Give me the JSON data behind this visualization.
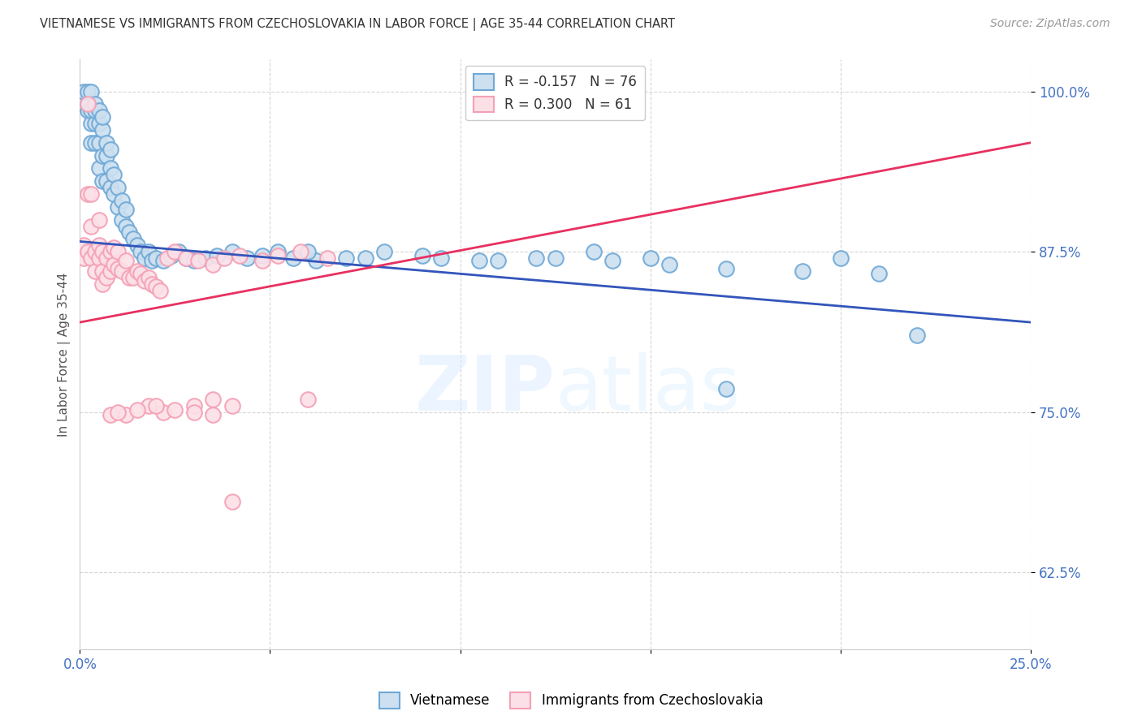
{
  "title": "VIETNAMESE VS IMMIGRANTS FROM CZECHOSLOVAKIA IN LABOR FORCE | AGE 35-44 CORRELATION CHART",
  "source": "Source: ZipAtlas.com",
  "ylabel": "In Labor Force | Age 35-44",
  "xlim": [
    0.0,
    0.25
  ],
  "ylim": [
    0.565,
    1.025
  ],
  "xtick_positions": [
    0.0,
    0.05,
    0.1,
    0.15,
    0.2,
    0.25
  ],
  "xticklabels": [
    "0.0%",
    "",
    "",
    "",
    "",
    "25.0%"
  ],
  "ytick_positions": [
    0.625,
    0.75,
    0.875,
    1.0
  ],
  "ytick_labels": [
    "62.5%",
    "75.0%",
    "87.5%",
    "100.0%"
  ],
  "blue_color_face": "#cce0f0",
  "blue_color_edge": "#6fa8d6",
  "pink_color_face": "#fce0e8",
  "pink_color_edge": "#f4a0b5",
  "blue_line_color": "#3355bb",
  "pink_line_color": "#e83060",
  "watermark_color": "#ddeeff",
  "blue_scatter_x": [
    0.001,
    0.001,
    0.002,
    0.002,
    0.002,
    0.003,
    0.003,
    0.003,
    0.003,
    0.004,
    0.004,
    0.004,
    0.004,
    0.005,
    0.005,
    0.005,
    0.005,
    0.006,
    0.006,
    0.006,
    0.006,
    0.007,
    0.007,
    0.007,
    0.008,
    0.008,
    0.008,
    0.009,
    0.009,
    0.01,
    0.01,
    0.011,
    0.011,
    0.012,
    0.012,
    0.013,
    0.014,
    0.015,
    0.016,
    0.017,
    0.018,
    0.019,
    0.02,
    0.022,
    0.024,
    0.026,
    0.028,
    0.03,
    0.033,
    0.036,
    0.04,
    0.044,
    0.048,
    0.052,
    0.056,
    0.062,
    0.07,
    0.08,
    0.095,
    0.11,
    0.125,
    0.14,
    0.155,
    0.17,
    0.19,
    0.21,
    0.06,
    0.075,
    0.09,
    0.105,
    0.12,
    0.135,
    0.15,
    0.17,
    0.2,
    0.22
  ],
  "blue_scatter_y": [
    0.99,
    1.0,
    0.985,
    0.99,
    1.0,
    0.96,
    0.975,
    0.985,
    1.0,
    0.96,
    0.975,
    0.985,
    0.99,
    0.94,
    0.96,
    0.975,
    0.985,
    0.93,
    0.95,
    0.97,
    0.98,
    0.93,
    0.95,
    0.96,
    0.925,
    0.94,
    0.955,
    0.92,
    0.935,
    0.91,
    0.925,
    0.9,
    0.915,
    0.895,
    0.908,
    0.89,
    0.885,
    0.88,
    0.875,
    0.87,
    0.875,
    0.868,
    0.87,
    0.868,
    0.872,
    0.875,
    0.87,
    0.868,
    0.87,
    0.872,
    0.875,
    0.87,
    0.872,
    0.875,
    0.87,
    0.868,
    0.87,
    0.875,
    0.87,
    0.868,
    0.87,
    0.868,
    0.865,
    0.862,
    0.86,
    0.858,
    0.875,
    0.87,
    0.872,
    0.868,
    0.87,
    0.875,
    0.87,
    0.768,
    0.87,
    0.81
  ],
  "pink_scatter_x": [
    0.001,
    0.001,
    0.002,
    0.002,
    0.002,
    0.003,
    0.003,
    0.003,
    0.004,
    0.004,
    0.005,
    0.005,
    0.005,
    0.006,
    0.006,
    0.006,
    0.007,
    0.007,
    0.008,
    0.008,
    0.009,
    0.009,
    0.01,
    0.01,
    0.011,
    0.012,
    0.013,
    0.014,
    0.015,
    0.016,
    0.017,
    0.018,
    0.019,
    0.02,
    0.021,
    0.023,
    0.025,
    0.028,
    0.031,
    0.035,
    0.038,
    0.042,
    0.048,
    0.052,
    0.058,
    0.065,
    0.06,
    0.035,
    0.03,
    0.04,
    0.018,
    0.022,
    0.012,
    0.008,
    0.01,
    0.015,
    0.02,
    0.025,
    0.03,
    0.035,
    0.04
  ],
  "pink_scatter_y": [
    0.88,
    0.87,
    0.99,
    0.92,
    0.875,
    0.92,
    0.895,
    0.87,
    0.875,
    0.86,
    0.9,
    0.88,
    0.87,
    0.875,
    0.86,
    0.85,
    0.87,
    0.855,
    0.875,
    0.86,
    0.865,
    0.878,
    0.862,
    0.875,
    0.86,
    0.868,
    0.855,
    0.855,
    0.86,
    0.858,
    0.852,
    0.855,
    0.85,
    0.848,
    0.845,
    0.87,
    0.875,
    0.87,
    0.868,
    0.865,
    0.87,
    0.872,
    0.868,
    0.872,
    0.875,
    0.87,
    0.76,
    0.76,
    0.755,
    0.755,
    0.755,
    0.75,
    0.748,
    0.748,
    0.75,
    0.752,
    0.755,
    0.752,
    0.75,
    0.748,
    0.68
  ],
  "blue_trend_x0": 0.0,
  "blue_trend_y0": 0.883,
  "blue_trend_x1": 0.25,
  "blue_trend_y1": 0.82,
  "pink_trend_x0": 0.0,
  "pink_trend_y0": 0.82,
  "pink_trend_x1": 0.25,
  "pink_trend_y1": 0.96
}
